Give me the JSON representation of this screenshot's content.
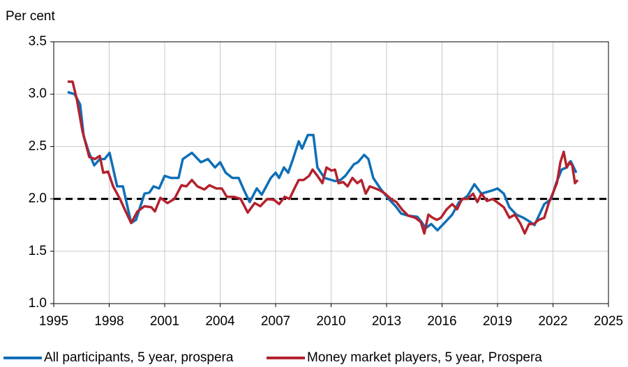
{
  "chart_data": {
    "type": "line",
    "y_label": "Per cent",
    "xlim": [
      1995,
      2025
    ],
    "xticks": [
      1995,
      1998,
      2001,
      2004,
      2007,
      2010,
      2013,
      2016,
      2019,
      2022,
      2025
    ],
    "ylim": [
      1.0,
      3.5
    ],
    "yticks": [
      {
        "value": 1.0,
        "label": "1.0"
      },
      1.5,
      {
        "value": 2.0,
        "label": "2.0"
      },
      2.5,
      {
        "value": 3.0,
        "label": "3.0"
      },
      3.5
    ],
    "grid": true,
    "reference_line": 2.0,
    "legend": "bottom",
    "series": [
      {
        "name": "All participants, 5 year, prospera",
        "color": "#0e6fb7",
        "x": [
          1995.75,
          1996.13,
          1996.43,
          1996.62,
          1996.89,
          1997.19,
          1997.49,
          1997.75,
          1998.02,
          1998.43,
          1998.74,
          1999.19,
          1999.45,
          1999.91,
          2000.17,
          2000.4,
          2000.7,
          2001.0,
          2001.34,
          2001.75,
          2001.98,
          2002.47,
          2002.96,
          2003.34,
          2003.72,
          2004.0,
          2004.3,
          2004.66,
          2005.0,
          2005.3,
          2005.6,
          2005.98,
          2006.25,
          2006.74,
          2007.0,
          2007.19,
          2007.45,
          2007.68,
          2007.94,
          2008.25,
          2008.43,
          2008.74,
          2009.04,
          2009.26,
          2009.64,
          2010.21,
          2010.51,
          2010.77,
          2011.23,
          2011.45,
          2011.79,
          2012.02,
          2012.28,
          2012.66,
          2013.11,
          2013.49,
          2013.79,
          2014.17,
          2014.66,
          2014.89,
          2015.11,
          2015.42,
          2015.75,
          2016.13,
          2016.55,
          2016.92,
          2017.38,
          2017.75,
          2018.13,
          2018.7,
          2019.0,
          2019.34,
          2019.64,
          2020.02,
          2020.4,
          2020.77,
          2021.0,
          2021.53,
          2021.91,
          2022.17,
          2022.47,
          2022.74,
          2022.96,
          2023.26
        ],
        "values": [
          3.02,
          3.0,
          2.9,
          2.6,
          2.45,
          2.32,
          2.38,
          2.38,
          2.44,
          2.12,
          2.12,
          1.77,
          1.8,
          2.05,
          2.06,
          2.12,
          2.1,
          2.22,
          2.2,
          2.2,
          2.38,
          2.44,
          2.35,
          2.38,
          2.3,
          2.35,
          2.25,
          2.2,
          2.2,
          2.08,
          1.97,
          2.1,
          2.04,
          2.2,
          2.25,
          2.2,
          2.3,
          2.25,
          2.38,
          2.55,
          2.48,
          2.61,
          2.61,
          2.3,
          2.2,
          2.17,
          2.18,
          2.22,
          2.33,
          2.35,
          2.42,
          2.38,
          2.2,
          2.1,
          2.0,
          1.93,
          1.86,
          1.84,
          1.83,
          1.78,
          1.72,
          1.76,
          1.7,
          1.77,
          1.85,
          1.97,
          2.03,
          2.14,
          2.05,
          2.08,
          2.1,
          2.05,
          1.92,
          1.85,
          1.82,
          1.78,
          1.75,
          1.95,
          2.0,
          2.15,
          2.28,
          2.3,
          2.36,
          2.25
        ]
      },
      {
        "name": "Money market players, 5 year, Prospera",
        "color": "#b3222e",
        "x": [
          1995.75,
          1996.02,
          1996.25,
          1996.55,
          1996.92,
          1997.23,
          1997.49,
          1997.68,
          1997.94,
          1998.21,
          1998.58,
          1998.89,
          1999.19,
          1999.53,
          1999.91,
          2000.28,
          2000.47,
          2000.77,
          2001.15,
          2001.53,
          2001.91,
          2002.17,
          2002.47,
          2002.77,
          2003.15,
          2003.42,
          2003.79,
          2004.09,
          2004.36,
          2004.74,
          2005.11,
          2005.49,
          2005.87,
          2006.17,
          2006.55,
          2006.92,
          2007.19,
          2007.49,
          2007.75,
          2008.02,
          2008.25,
          2008.51,
          2008.81,
          2009.0,
          2009.26,
          2009.53,
          2009.75,
          2010.02,
          2010.21,
          2010.4,
          2010.66,
          2010.89,
          2011.15,
          2011.42,
          2011.64,
          2011.87,
          2012.09,
          2012.4,
          2012.66,
          2012.92,
          2013.23,
          2013.53,
          2013.83,
          2014.17,
          2014.55,
          2014.85,
          2015.04,
          2015.26,
          2015.49,
          2015.72,
          2015.94,
          2016.25,
          2016.55,
          2016.81,
          2017.08,
          2017.38,
          2017.68,
          2017.91,
          2018.13,
          2018.43,
          2018.74,
          2019.04,
          2019.34,
          2019.64,
          2019.94,
          2020.25,
          2020.47,
          2020.7,
          2020.96,
          2021.23,
          2021.53,
          2021.75,
          2021.98,
          2022.21,
          2022.4,
          2022.58,
          2022.74,
          2022.89,
          2023.04,
          2023.19,
          2023.34
        ],
        "values": [
          3.12,
          3.12,
          2.95,
          2.65,
          2.4,
          2.38,
          2.41,
          2.25,
          2.26,
          2.12,
          2.0,
          1.88,
          1.77,
          1.88,
          1.93,
          1.92,
          1.88,
          2.01,
          1.96,
          2.0,
          2.13,
          2.12,
          2.18,
          2.12,
          2.09,
          2.13,
          2.1,
          2.1,
          2.02,
          2.02,
          2.0,
          1.87,
          1.96,
          1.93,
          2.0,
          1.99,
          1.95,
          2.02,
          2.0,
          2.1,
          2.18,
          2.18,
          2.22,
          2.28,
          2.22,
          2.15,
          2.3,
          2.27,
          2.28,
          2.15,
          2.16,
          2.12,
          2.2,
          2.15,
          2.18,
          2.05,
          2.12,
          2.1,
          2.08,
          2.05,
          2.0,
          1.97,
          1.9,
          1.84,
          1.82,
          1.78,
          1.67,
          1.85,
          1.82,
          1.8,
          1.82,
          1.9,
          1.95,
          1.9,
          2.0,
          2.0,
          2.05,
          1.97,
          2.05,
          1.98,
          2.0,
          1.96,
          1.92,
          1.82,
          1.85,
          1.76,
          1.67,
          1.76,
          1.76,
          1.8,
          1.82,
          1.95,
          2.05,
          2.15,
          2.35,
          2.45,
          2.3,
          2.35,
          2.32,
          2.15,
          2.18
        ]
      }
    ]
  }
}
